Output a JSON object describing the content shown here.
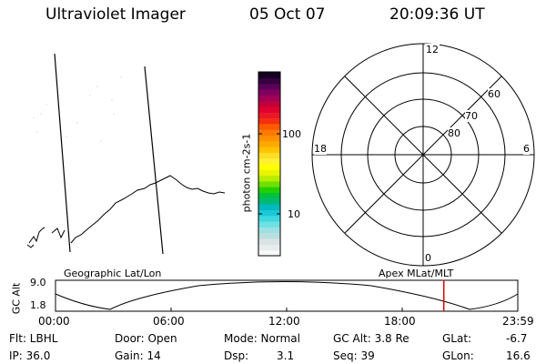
{
  "header": {
    "instrument": "Ultraviolet Imager",
    "date": "05 Oct 07",
    "time": "20:09:36 UT"
  },
  "colorbar": {
    "ticks": [
      "100",
      "10"
    ],
    "unit_label": "photon cm-2s-1",
    "colors": [
      "#f8f8f8",
      "#e8ecec",
      "#d8e4e4",
      "#bcdfe0",
      "#9fe0e2",
      "#6fe0e4",
      "#3ed8df",
      "#18c8d6",
      "#00b8c0",
      "#00b878",
      "#00c040",
      "#20d000",
      "#6ee000",
      "#b8ec00",
      "#e8f400",
      "#ffff00",
      "#fff030",
      "#ffdc28",
      "#ffc400",
      "#ffa800",
      "#ff9000",
      "#ff7a00",
      "#ff5a00",
      "#f43010",
      "#e81828",
      "#e00030",
      "#c0003c",
      "#a00058",
      "#80005e",
      "#5a0056",
      "#360040",
      "#140020"
    ],
    "color_max": "#140020",
    "color_min": "#f8f8f8"
  },
  "polar": {
    "mlt_labels": {
      "top": "12",
      "left": "18",
      "right": "6",
      "bottom": "0"
    },
    "lat_labels": [
      "60",
      "70",
      "80"
    ]
  },
  "timeline": {
    "left_label": "Geographic Lat/Lon",
    "right_label": "Apex MLat/MLT",
    "y_axis_label": "GC Alt",
    "y_ticks": [
      "9.0",
      "1.8"
    ],
    "x_ticks": [
      "00:00",
      "06:00",
      "12:00",
      "18:00",
      "23:59"
    ],
    "marker_time_hours": 20.16,
    "marker_color": "#e00000"
  },
  "info": {
    "flt": "Flt: LBHL",
    "ip": "IP: 36.0",
    "door": "Door: Open",
    "gain": "Gain: 14",
    "mode": "Mode: Normal",
    "dsp_label": "Dsp:",
    "dsp_value": "3.1",
    "gcalt": "GC Alt: 3.8 Re",
    "seq": "Seq: 39",
    "glat_label": "GLat:",
    "glat_value": "-6.7",
    "glon_label": "GLon:",
    "glon_value": "16.6"
  }
}
